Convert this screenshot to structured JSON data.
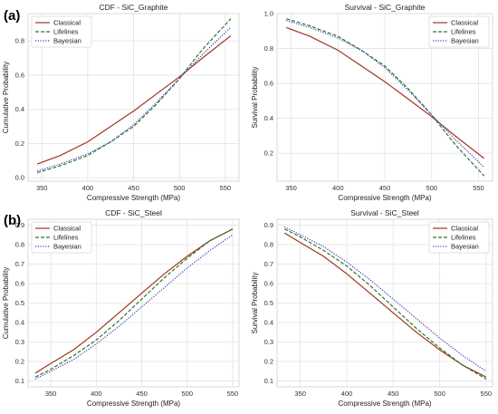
{
  "figure": {
    "panel_labels": [
      "(a)",
      "(b)"
    ],
    "legend": [
      "Classical",
      "Lifelines",
      "Bayesian"
    ],
    "colors": {
      "Classical": "#a0341e",
      "Lifelines": "#2a7a2a",
      "Bayesian": "#3a3ab8"
    }
  },
  "chart_data": [
    {
      "type": "line",
      "title": "CDF - SiC_Graphite",
      "xlabel": "Compressive Strength (MPa)",
      "ylabel": "Cumulative Probability",
      "xlim": [
        335,
        565
      ],
      "ylim": [
        -0.02,
        0.96
      ],
      "xticks": [
        350,
        400,
        450,
        500,
        550
      ],
      "yticks": [
        0.0,
        0.2,
        0.4,
        0.6,
        0.8
      ],
      "ytick_labels": [
        "0.0",
        "0.2",
        "0.4",
        "0.6",
        "0.8"
      ],
      "legend_position": "upper-left",
      "x": [
        345,
        370,
        400,
        425,
        450,
        475,
        500,
        525,
        556
      ],
      "series": [
        {
          "name": "Classical",
          "style": "solid",
          "values": [
            0.08,
            0.13,
            0.21,
            0.3,
            0.39,
            0.49,
            0.59,
            0.7,
            0.83
          ]
        },
        {
          "name": "Lifelines",
          "style": "dashed",
          "values": [
            0.03,
            0.07,
            0.13,
            0.21,
            0.3,
            0.43,
            0.58,
            0.75,
            0.93
          ]
        },
        {
          "name": "Bayesian",
          "style": "dotted",
          "values": [
            0.04,
            0.08,
            0.14,
            0.21,
            0.31,
            0.44,
            0.58,
            0.72,
            0.88
          ]
        }
      ]
    },
    {
      "type": "line",
      "title": "Survival - SiC_Graphite",
      "xlabel": "Compressive Strength (MPa)",
      "ylabel": "Survival Probability",
      "xlim": [
        335,
        565
      ],
      "ylim": [
        0.04,
        1.0
      ],
      "xticks": [
        350,
        400,
        450,
        500,
        550
      ],
      "yticks": [
        0.2,
        0.4,
        0.6,
        0.8,
        1.0
      ],
      "ytick_labels": [
        "0.2",
        "0.4",
        "0.6",
        "0.8",
        "1.0"
      ],
      "legend_position": "upper-right",
      "x": [
        345,
        370,
        400,
        425,
        450,
        475,
        500,
        525,
        556
      ],
      "series": [
        {
          "name": "Classical",
          "style": "solid",
          "values": [
            0.92,
            0.87,
            0.79,
            0.7,
            0.61,
            0.51,
            0.41,
            0.3,
            0.17
          ]
        },
        {
          "name": "Lifelines",
          "style": "dashed",
          "values": [
            0.97,
            0.93,
            0.87,
            0.79,
            0.7,
            0.57,
            0.42,
            0.25,
            0.07
          ]
        },
        {
          "name": "Bayesian",
          "style": "dotted",
          "values": [
            0.96,
            0.92,
            0.86,
            0.79,
            0.69,
            0.56,
            0.42,
            0.28,
            0.12
          ]
        }
      ]
    },
    {
      "type": "line",
      "title": "CDF - SiC_Steel",
      "xlabel": "Compressive Strength (MPa)",
      "ylabel": "Cumulative Probability",
      "xlim": [
        325,
        557
      ],
      "ylim": [
        0.07,
        0.93
      ],
      "xticks": [
        350,
        400,
        450,
        500,
        550
      ],
      "yticks": [
        0.1,
        0.2,
        0.3,
        0.4,
        0.5,
        0.6,
        0.7,
        0.8,
        0.9
      ],
      "ytick_labels": [
        "0.1",
        "0.2",
        "0.3",
        "0.4",
        "0.5",
        "0.6",
        "0.7",
        "0.8",
        "0.9"
      ],
      "legend_position": "upper-left",
      "x": [
        333,
        350,
        375,
        400,
        425,
        450,
        475,
        500,
        525,
        550
      ],
      "series": [
        {
          "name": "Classical",
          "style": "solid",
          "values": [
            0.14,
            0.19,
            0.26,
            0.35,
            0.45,
            0.55,
            0.65,
            0.74,
            0.82,
            0.88
          ]
        },
        {
          "name": "Lifelines",
          "style": "dashed",
          "values": [
            0.12,
            0.16,
            0.23,
            0.31,
            0.41,
            0.52,
            0.63,
            0.73,
            0.82,
            0.88
          ]
        },
        {
          "name": "Bayesian",
          "style": "dotted",
          "values": [
            0.11,
            0.15,
            0.21,
            0.29,
            0.38,
            0.48,
            0.58,
            0.68,
            0.77,
            0.85
          ]
        }
      ]
    },
    {
      "type": "line",
      "title": "Survival - SiC_Steel",
      "xlabel": "Compressive Strength (MPa)",
      "ylabel": "Survival Probability",
      "xlim": [
        325,
        557
      ],
      "ylim": [
        0.07,
        0.93
      ],
      "xticks": [
        350,
        400,
        450,
        500,
        550
      ],
      "yticks": [
        0.1,
        0.2,
        0.3,
        0.4,
        0.5,
        0.6,
        0.7,
        0.8,
        0.9
      ],
      "ytick_labels": [
        "0.1",
        "0.2",
        "0.3",
        "0.4",
        "0.5",
        "0.6",
        "0.7",
        "0.8",
        "0.9"
      ],
      "legend_position": "upper-right",
      "x": [
        333,
        350,
        375,
        400,
        425,
        450,
        475,
        500,
        525,
        550
      ],
      "series": [
        {
          "name": "Classical",
          "style": "solid",
          "values": [
            0.86,
            0.81,
            0.74,
            0.65,
            0.55,
            0.45,
            0.35,
            0.26,
            0.18,
            0.12
          ]
        },
        {
          "name": "Lifelines",
          "style": "dashed",
          "values": [
            0.88,
            0.84,
            0.77,
            0.69,
            0.59,
            0.48,
            0.37,
            0.27,
            0.18,
            0.11
          ]
        },
        {
          "name": "Bayesian",
          "style": "dotted",
          "values": [
            0.89,
            0.85,
            0.79,
            0.71,
            0.62,
            0.52,
            0.42,
            0.32,
            0.23,
            0.15
          ]
        }
      ]
    }
  ]
}
